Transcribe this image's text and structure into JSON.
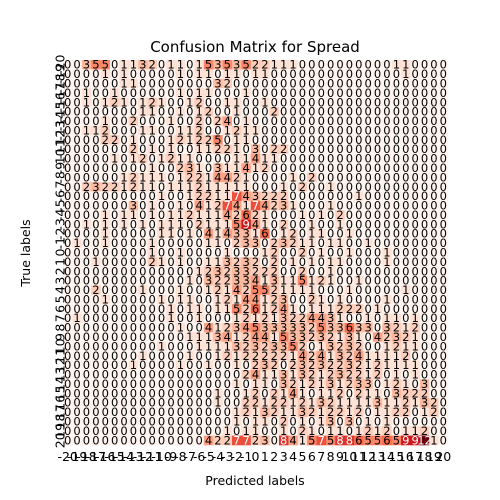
{
  "chart_data": {
    "type": "heatmap",
    "title": "Confusion Matrix for Spread",
    "xlabel": "Predicted labels",
    "ylabel": "True labels",
    "categories": [
      "-20",
      "-19",
      "-18",
      "-17",
      "-16",
      "-15",
      "-14",
      "-13",
      "-12",
      "-11",
      "-10",
      "-9",
      "-8",
      "-7",
      "-6",
      "-5",
      "-4",
      "-3",
      "-2",
      "-1",
      "0",
      "1",
      "2",
      "3",
      "4",
      "5",
      "6",
      "7",
      "8",
      "9",
      "10",
      "11",
      "12",
      "13",
      "14",
      "15",
      "16",
      "17",
      "18",
      "19",
      "20"
    ],
    "colorscale": [
      "#fff5f0",
      "#fcbba1",
      "#fb6a4a",
      "#cb181d",
      "#67000d"
    ],
    "matrix": [
      [
        0,
        0,
        3,
        5,
        5,
        0,
        1,
        1,
        3,
        2,
        0,
        1,
        1,
        0,
        1,
        5,
        3,
        5,
        3,
        5,
        2,
        2,
        1,
        1,
        1,
        0,
        0,
        0,
        0,
        0,
        0,
        0,
        0,
        0,
        0,
        1,
        1,
        0,
        0,
        0,
        0
      ],
      [
        0,
        0,
        0,
        0,
        1,
        0,
        1,
        0,
        0,
        0,
        0,
        0,
        1,
        0,
        1,
        1,
        0,
        1,
        1,
        0,
        1,
        1,
        0,
        0,
        0,
        0,
        0,
        0,
        0,
        0,
        0,
        0,
        0,
        0,
        0,
        0,
        1,
        0,
        0,
        0,
        0
      ],
      [
        0,
        0,
        0,
        0,
        0,
        0,
        1,
        1,
        0,
        0,
        0,
        0,
        0,
        0,
        0,
        0,
        3,
        2,
        0,
        0,
        0,
        0,
        0,
        0,
        0,
        0,
        0,
        0,
        0,
        0,
        0,
        0,
        0,
        0,
        0,
        0,
        0,
        0,
        0,
        0,
        0
      ],
      [
        0,
        0,
        1,
        0,
        0,
        1,
        0,
        0,
        0,
        0,
        0,
        0,
        1,
        0,
        1,
        1,
        0,
        0,
        0,
        1,
        0,
        0,
        0,
        0,
        0,
        0,
        0,
        0,
        0,
        0,
        0,
        0,
        0,
        0,
        0,
        0,
        0,
        0,
        0,
        0,
        0
      ],
      [
        0,
        0,
        1,
        0,
        1,
        2,
        1,
        0,
        1,
        2,
        1,
        0,
        0,
        1,
        2,
        0,
        0,
        1,
        1,
        0,
        0,
        1,
        0,
        0,
        0,
        0,
        0,
        0,
        0,
        0,
        0,
        0,
        0,
        0,
        0,
        0,
        0,
        0,
        0,
        0,
        0
      ],
      [
        0,
        0,
        0,
        0,
        0,
        0,
        0,
        0,
        1,
        1,
        0,
        0,
        1,
        0,
        1,
        2,
        0,
        0,
        1,
        0,
        0,
        0,
        2,
        0,
        0,
        0,
        0,
        0,
        0,
        0,
        0,
        0,
        0,
        0,
        0,
        0,
        0,
        0,
        0,
        0,
        0
      ],
      [
        0,
        0,
        0,
        0,
        1,
        0,
        0,
        2,
        0,
        0,
        0,
        1,
        0,
        0,
        2,
        0,
        2,
        4,
        0,
        1,
        0,
        0,
        0,
        0,
        0,
        0,
        0,
        0,
        0,
        0,
        0,
        0,
        0,
        0,
        0,
        0,
        0,
        0,
        0,
        0,
        0
      ],
      [
        0,
        0,
        1,
        1,
        2,
        0,
        0,
        0,
        1,
        1,
        0,
        0,
        1,
        1,
        2,
        0,
        0,
        1,
        2,
        1,
        1,
        0,
        0,
        0,
        0,
        0,
        0,
        0,
        0,
        0,
        0,
        0,
        0,
        0,
        0,
        0,
        0,
        0,
        0,
        0,
        0
      ],
      [
        0,
        0,
        0,
        0,
        2,
        2,
        0,
        1,
        0,
        0,
        0,
        1,
        2,
        1,
        2,
        2,
        5,
        0,
        1,
        1,
        0,
        0,
        0,
        0,
        0,
        0,
        0,
        0,
        0,
        0,
        0,
        0,
        0,
        0,
        0,
        0,
        0,
        0,
        0,
        0,
        0
      ],
      [
        0,
        0,
        0,
        0,
        0,
        0,
        0,
        2,
        0,
        1,
        0,
        1,
        0,
        0,
        1,
        1,
        2,
        2,
        1,
        0,
        3,
        0,
        2,
        2,
        0,
        0,
        0,
        0,
        0,
        0,
        0,
        0,
        0,
        0,
        0,
        0,
        0,
        0,
        0,
        0,
        0
      ],
      [
        0,
        0,
        0,
        0,
        0,
        1,
        0,
        1,
        2,
        0,
        1,
        2,
        1,
        1,
        0,
        0,
        0,
        0,
        1,
        1,
        4,
        1,
        1,
        0,
        0,
        0,
        0,
        0,
        0,
        0,
        0,
        0,
        0,
        0,
        0,
        0,
        0,
        0,
        0,
        0,
        0
      ],
      [
        0,
        0,
        0,
        0,
        0,
        0,
        0,
        0,
        0,
        1,
        0,
        0,
        2,
        3,
        1,
        0,
        3,
        1,
        1,
        4,
        1,
        2,
        0,
        0,
        0,
        0,
        0,
        0,
        0,
        0,
        0,
        0,
        0,
        0,
        0,
        0,
        0,
        0,
        0,
        0,
        0
      ],
      [
        0,
        0,
        0,
        0,
        0,
        0,
        1,
        2,
        1,
        1,
        1,
        0,
        1,
        2,
        2,
        1,
        4,
        4,
        2,
        1,
        0,
        0,
        0,
        0,
        1,
        0,
        2,
        0,
        0,
        0,
        0,
        0,
        0,
        0,
        0,
        0,
        0,
        0,
        0,
        0,
        0
      ],
      [
        0,
        0,
        2,
        3,
        2,
        2,
        1,
        2,
        1,
        1,
        0,
        1,
        1,
        1,
        2,
        1,
        1,
        1,
        1,
        1,
        0,
        0,
        0,
        1,
        0,
        2,
        0,
        0,
        1,
        0,
        0,
        0,
        0,
        0,
        0,
        0,
        0,
        0,
        0,
        0,
        0
      ],
      [
        0,
        0,
        0,
        0,
        0,
        0,
        0,
        0,
        0,
        0,
        1,
        0,
        0,
        1,
        2,
        2,
        1,
        1,
        7,
        4,
        3,
        2,
        2,
        2,
        0,
        0,
        0,
        0,
        0,
        0,
        0,
        1,
        0,
        0,
        0,
        0,
        0,
        0,
        0,
        0,
        0
      ],
      [
        0,
        0,
        0,
        0,
        0,
        0,
        0,
        3,
        0,
        1,
        0,
        0,
        1,
        0,
        4,
        1,
        2,
        7,
        4,
        1,
        7,
        4,
        2,
        3,
        1,
        0,
        0,
        0,
        1,
        0,
        0,
        0,
        0,
        0,
        0,
        0,
        0,
        0,
        0,
        0,
        0
      ],
      [
        0,
        0,
        0,
        0,
        1,
        0,
        1,
        1,
        0,
        1,
        0,
        1,
        1,
        2,
        1,
        1,
        1,
        4,
        2,
        6,
        2,
        1,
        0,
        0,
        0,
        1,
        0,
        1,
        0,
        2,
        0,
        0,
        0,
        0,
        0,
        0,
        0,
        0,
        0,
        0,
        0
      ],
      [
        0,
        0,
        1,
        0,
        1,
        0,
        1,
        0,
        1,
        0,
        1,
        1,
        1,
        0,
        2,
        1,
        1,
        1,
        5,
        9,
        4,
        1,
        0,
        2,
        0,
        0,
        1,
        0,
        0,
        1,
        0,
        0,
        0,
        0,
        0,
        0,
        0,
        0,
        0,
        0,
        0
      ],
      [
        0,
        0,
        0,
        0,
        1,
        0,
        0,
        0,
        0,
        0,
        1,
        1,
        0,
        1,
        0,
        4,
        1,
        4,
        3,
        3,
        1,
        6,
        0,
        1,
        2,
        0,
        1,
        1,
        0,
        0,
        1,
        0,
        0,
        0,
        0,
        0,
        0,
        0,
        0,
        0,
        0
      ],
      [
        0,
        1,
        0,
        0,
        1,
        0,
        0,
        0,
        0,
        1,
        0,
        0,
        0,
        0,
        0,
        1,
        1,
        0,
        2,
        3,
        3,
        0,
        2,
        3,
        2,
        1,
        1,
        0,
        1,
        1,
        0,
        0,
        1,
        0,
        0,
        0,
        0,
        0,
        0,
        0,
        0
      ],
      [
        0,
        0,
        0,
        0,
        0,
        0,
        0,
        0,
        0,
        1,
        0,
        0,
        1,
        0,
        0,
        0,
        0,
        1,
        0,
        0,
        0,
        1,
        2,
        0,
        0,
        2,
        0,
        1,
        0,
        0,
        1,
        0,
        0,
        0,
        1,
        0,
        0,
        0,
        0,
        0,
        0
      ],
      [
        0,
        0,
        0,
        1,
        0,
        0,
        0,
        0,
        0,
        2,
        1,
        0,
        1,
        0,
        0,
        1,
        1,
        3,
        2,
        3,
        2,
        0,
        2,
        0,
        1,
        0,
        1,
        0,
        1,
        1,
        0,
        0,
        0,
        0,
        1,
        0,
        0,
        0,
        0,
        0,
        0
      ],
      [
        0,
        0,
        0,
        0,
        0,
        0,
        0,
        0,
        0,
        0,
        0,
        0,
        0,
        0,
        1,
        2,
        3,
        2,
        3,
        3,
        2,
        2,
        2,
        0,
        0,
        2,
        0,
        0,
        1,
        0,
        0,
        0,
        0,
        0,
        0,
        0,
        0,
        0,
        0,
        0,
        0
      ],
      [
        0,
        0,
        0,
        0,
        0,
        0,
        0,
        0,
        0,
        0,
        0,
        0,
        0,
        1,
        0,
        3,
        2,
        2,
        3,
        3,
        4,
        1,
        3,
        1,
        1,
        5,
        1,
        2,
        1,
        0,
        0,
        1,
        0,
        0,
        0,
        0,
        0,
        0,
        0,
        0,
        0
      ],
      [
        0,
        0,
        0,
        2,
        0,
        0,
        0,
        0,
        1,
        0,
        0,
        0,
        1,
        0,
        0,
        1,
        2,
        1,
        4,
        2,
        5,
        5,
        2,
        1,
        1,
        1,
        1,
        0,
        0,
        0,
        1,
        0,
        0,
        0,
        0,
        0,
        1,
        0,
        0,
        0,
        0
      ],
      [
        0,
        0,
        0,
        0,
        1,
        0,
        0,
        0,
        0,
        0,
        1,
        0,
        1,
        1,
        0,
        0,
        1,
        2,
        1,
        4,
        4,
        1,
        2,
        3,
        0,
        0,
        2,
        1,
        0,
        1,
        0,
        0,
        0,
        0,
        1,
        0,
        0,
        0,
        0,
        0,
        0
      ],
      [
        0,
        0,
        0,
        0,
        0,
        0,
        0,
        0,
        0,
        0,
        0,
        1,
        0,
        1,
        1,
        0,
        1,
        1,
        5,
        2,
        6,
        1,
        2,
        4,
        1,
        0,
        1,
        1,
        1,
        2,
        2,
        2,
        0,
        1,
        0,
        0,
        0,
        0,
        0,
        0,
        0
      ],
      [
        0,
        1,
        0,
        0,
        0,
        0,
        0,
        0,
        0,
        0,
        0,
        1,
        0,
        0,
        1,
        0,
        0,
        0,
        1,
        2,
        1,
        2,
        1,
        3,
        2,
        2,
        4,
        4,
        3,
        1,
        0,
        0,
        1,
        0,
        1,
        1,
        0,
        1,
        0,
        0,
        0
      ],
      [
        0,
        0,
        0,
        0,
        0,
        0,
        0,
        0,
        0,
        0,
        0,
        0,
        1,
        0,
        0,
        4,
        1,
        2,
        3,
        4,
        5,
        3,
        3,
        3,
        3,
        3,
        2,
        5,
        3,
        3,
        6,
        3,
        3,
        0,
        3,
        2,
        1,
        2,
        0,
        0,
        0
      ],
      [
        0,
        0,
        0,
        0,
        0,
        0,
        0,
        0,
        0,
        0,
        0,
        0,
        0,
        1,
        1,
        1,
        3,
        4,
        1,
        2,
        4,
        4,
        1,
        5,
        3,
        3,
        2,
        3,
        2,
        1,
        3,
        1,
        0,
        4,
        2,
        3,
        2,
        1,
        0,
        0,
        0
      ],
      [
        0,
        0,
        0,
        0,
        0,
        0,
        0,
        0,
        0,
        0,
        1,
        0,
        0,
        0,
        1,
        1,
        1,
        1,
        3,
        2,
        3,
        2,
        3,
        3,
        5,
        2,
        0,
        1,
        3,
        2,
        3,
        2,
        0,
        0,
        1,
        2,
        1,
        1,
        0,
        0,
        0
      ],
      [
        0,
        0,
        0,
        0,
        0,
        0,
        0,
        0,
        1,
        0,
        0,
        0,
        0,
        1,
        0,
        0,
        1,
        2,
        1,
        2,
        2,
        2,
        2,
        2,
        1,
        4,
        2,
        4,
        1,
        3,
        2,
        4,
        1,
        1,
        1,
        1,
        2,
        0,
        0,
        0,
        0
      ],
      [
        0,
        0,
        0,
        0,
        0,
        0,
        0,
        1,
        0,
        0,
        0,
        0,
        1,
        0,
        0,
        1,
        0,
        0,
        1,
        0,
        2,
        3,
        2,
        0,
        2,
        3,
        2,
        3,
        2,
        2,
        3,
        2,
        1,
        2,
        1,
        1,
        1,
        1,
        0,
        0,
        0
      ],
      [
        0,
        0,
        0,
        0,
        0,
        0,
        0,
        0,
        0,
        0,
        0,
        0,
        0,
        0,
        0,
        0,
        0,
        0,
        0,
        2,
        4,
        1,
        1,
        3,
        1,
        3,
        2,
        1,
        2,
        3,
        2,
        2,
        1,
        2,
        0,
        1,
        0,
        1,
        0,
        0,
        0
      ],
      [
        0,
        0,
        0,
        0,
        0,
        0,
        0,
        0,
        0,
        0,
        0,
        0,
        0,
        0,
        0,
        0,
        0,
        0,
        1,
        0,
        1,
        1,
        0,
        3,
        2,
        1,
        2,
        1,
        3,
        1,
        2,
        3,
        3,
        0,
        1,
        2,
        1,
        0,
        3,
        0,
        0
      ],
      [
        0,
        0,
        0,
        0,
        0,
        0,
        0,
        0,
        0,
        0,
        0,
        0,
        0,
        0,
        0,
        0,
        1,
        0,
        0,
        1,
        2,
        0,
        2,
        1,
        4,
        1,
        0,
        1,
        1,
        2,
        0,
        2,
        1,
        1,
        0,
        3,
        2,
        2,
        2,
        0,
        0
      ],
      [
        0,
        0,
        0,
        0,
        0,
        0,
        0,
        0,
        0,
        0,
        0,
        0,
        0,
        0,
        0,
        0,
        1,
        0,
        0,
        2,
        2,
        1,
        2,
        2,
        1,
        2,
        1,
        3,
        2,
        1,
        1,
        1,
        1,
        3,
        1,
        1,
        2,
        1,
        3,
        2,
        0
      ],
      [
        0,
        0,
        0,
        0,
        0,
        0,
        0,
        0,
        0,
        0,
        0,
        0,
        0,
        0,
        0,
        0,
        0,
        0,
        1,
        2,
        1,
        3,
        2,
        1,
        1,
        3,
        2,
        1,
        2,
        2,
        1,
        2,
        0,
        1,
        1,
        2,
        2,
        0,
        1,
        2,
        0
      ],
      [
        0,
        0,
        0,
        0,
        0,
        0,
        0,
        0,
        0,
        0,
        0,
        0,
        0,
        0,
        0,
        0,
        0,
        0,
        1,
        0,
        1,
        1,
        0,
        2,
        0,
        1,
        0,
        1,
        3,
        0,
        3,
        0,
        1,
        0,
        1,
        0,
        0,
        0,
        0,
        0,
        0
      ],
      [
        0,
        0,
        0,
        0,
        0,
        0,
        0,
        0,
        0,
        0,
        0,
        0,
        0,
        0,
        0,
        0,
        0,
        1,
        0,
        1,
        1,
        0,
        0,
        1,
        0,
        2,
        1,
        0,
        1,
        1,
        0,
        1,
        2,
        1,
        2,
        0,
        1,
        1,
        2,
        0,
        0
      ],
      [
        0,
        0,
        0,
        0,
        0,
        0,
        0,
        0,
        0,
        0,
        0,
        0,
        0,
        0,
        0,
        4,
        2,
        2,
        7,
        7,
        2,
        3,
        0,
        8,
        4,
        1,
        5,
        7,
        5,
        8,
        8,
        6,
        5,
        5,
        6,
        5,
        9,
        9,
        12,
        1,
        0
      ]
    ]
  }
}
